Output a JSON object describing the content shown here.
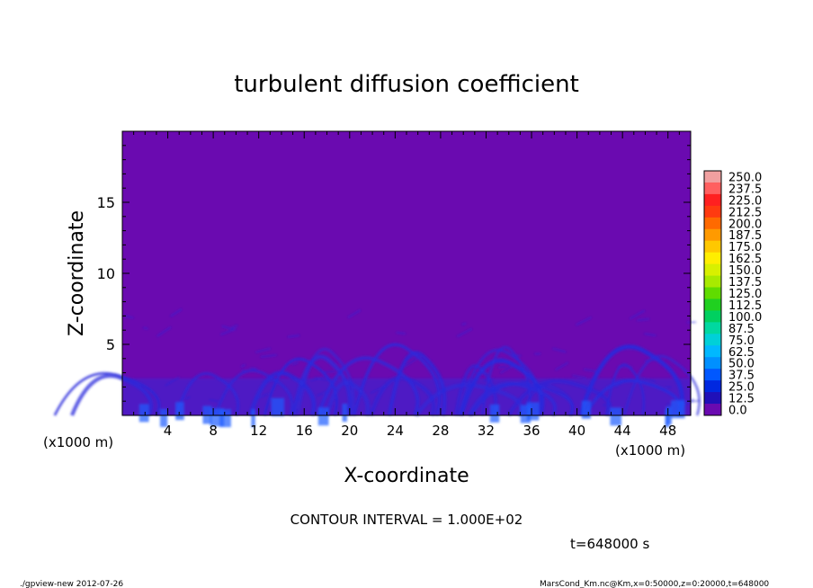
{
  "chart_data": {
    "type": "heatmap",
    "title": "turbulent diffusion coefficient",
    "xlabel": "X-coordinate",
    "ylabel": "Z-coordinate",
    "x_unit_left": "(x1000 m)",
    "x_unit_right": "(x1000 m)",
    "xlim": [
      0,
      50
    ],
    "ylim": [
      0,
      20
    ],
    "xticks": [
      4,
      8,
      12,
      16,
      20,
      24,
      28,
      32,
      36,
      40,
      44,
      48
    ],
    "yticks": [
      5,
      10,
      15
    ],
    "grid": false,
    "colorbar": {
      "levels": [
        "250.0",
        "237.5",
        "225.0",
        "212.5",
        "200.0",
        "187.5",
        "175.0",
        "162.5",
        "150.0",
        "137.5",
        "125.0",
        "112.5",
        "100.0",
        "87.5",
        "75.0",
        "62.5",
        "50.0",
        "37.5",
        "25.0",
        "12.5",
        "0.0"
      ],
      "colors": [
        "#f0a0a0",
        "#ff6060",
        "#ff2020",
        "#ff3a10",
        "#ff6a00",
        "#ff9a00",
        "#ffc800",
        "#ffee00",
        "#d8f000",
        "#a8ea00",
        "#60dc00",
        "#20d020",
        "#00d060",
        "#00d8a0",
        "#00d0d8",
        "#00b8ff",
        "#0090ff",
        "#0058ff",
        "#0028e0",
        "#2010b8",
        "#6a0ab0"
      ]
    },
    "background_color": "#6a0ab0",
    "turbulence_color": "#2a2adc",
    "contour_interval": "CONTOUR INTERVAL = 1.000E+02",
    "time": "t=648000 s"
  },
  "footer": {
    "program": "./gpview-new  2012-07-26",
    "source": "MarsCond_Km.nc@Km,x=0:50000,z=0:20000,t=648000"
  }
}
